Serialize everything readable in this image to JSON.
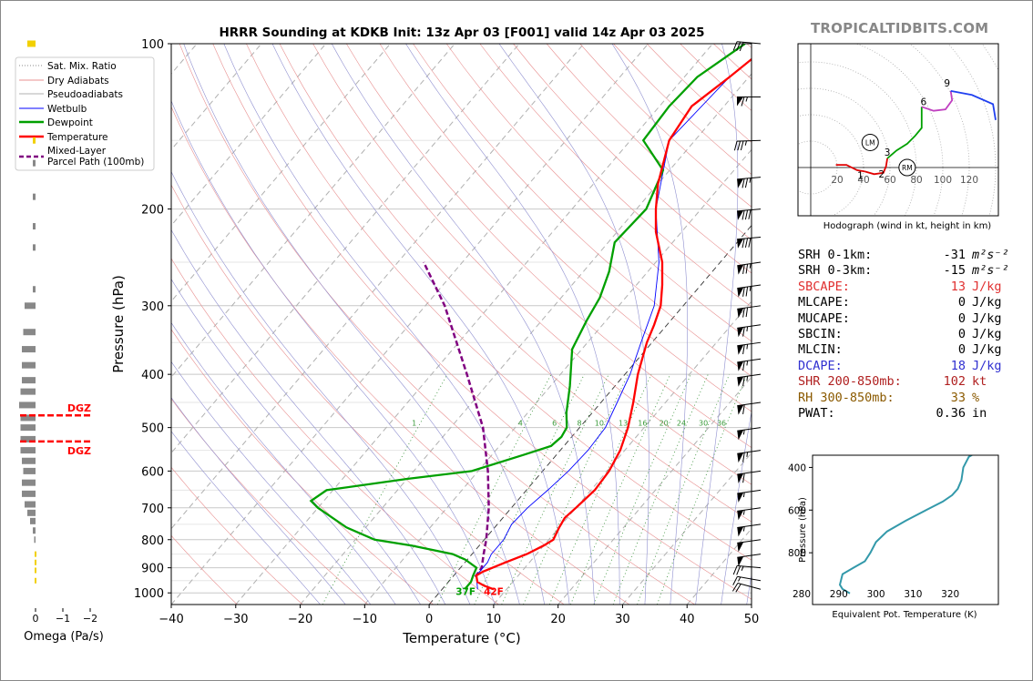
{
  "title": "HRRR Sounding at KDKB Init: 13z Apr 03 [F001] valid 14z Apr 03 2025",
  "brand": "TROPICALTIDBITS.COM",
  "chart_data": [
    {
      "type": "line",
      "subtype": "skew-T log-P sounding",
      "xlabel": "Temperature (°C)",
      "ylabel": "Pressure (hPa)",
      "xlim": [
        -40,
        50
      ],
      "ylim": [
        1050,
        100
      ],
      "yscale": "log",
      "x_ticks": [
        -40,
        -30,
        -20,
        -10,
        0,
        10,
        20,
        30,
        40,
        50
      ],
      "y_ticks": [
        100,
        200,
        300,
        400,
        500,
        600,
        700,
        800,
        900,
        1000
      ],
      "legend": [
        "Sat. Mix. Ratio",
        "Dry Adiabats",
        "Pseudoadiabats",
        "Wetbulb",
        "Dewpoint",
        "Temperature",
        "Mixed-Layer Parcel Path (100mb)"
      ],
      "legend_position": "top-left",
      "mixing_ratio_labels": [
        "1",
        "4",
        "6",
        "8",
        "10",
        "13",
        "16",
        "20",
        "24",
        "30",
        "36"
      ],
      "surface_labels": {
        "dewpoint": "37F",
        "temperature": "42F"
      },
      "colors": {
        "temperature": "#ff0000",
        "dewpoint": "#00a000",
        "wetbulb": "#0000ff",
        "parcel": "#800080",
        "dry": "#e89090",
        "moist": "#9090d0",
        "mixratio": "#2e8b2e"
      },
      "series": [
        {
          "name": "Temperature",
          "points": [
            [
              985,
              8
            ],
            [
              970,
              6
            ],
            [
              955,
              4.5
            ],
            [
              930,
              3.5
            ],
            [
              915,
              4
            ],
            [
              880,
              6.3
            ],
            [
              850,
              8.5
            ],
            [
              820,
              10
            ],
            [
              800,
              10.7
            ],
            [
              760,
              10
            ],
            [
              730,
              9.6
            ],
            [
              700,
              10
            ],
            [
              650,
              10.6
            ],
            [
              600,
              10.3
            ],
            [
              550,
              9.3
            ],
            [
              500,
              7.5
            ],
            [
              450,
              5
            ],
            [
              400,
              2
            ],
            [
              350,
              -0.8
            ],
            [
              325,
              -2
            ],
            [
              300,
              -3.5
            ],
            [
              275,
              -6
            ],
            [
              250,
              -9
            ],
            [
              220,
              -14
            ],
            [
              200,
              -17
            ],
            [
              180,
              -20
            ],
            [
              150,
              -24
            ],
            [
              130,
              -25
            ],
            [
              115,
              -23
            ],
            [
              100,
              -21
            ]
          ]
        },
        {
          "name": "Dewpoint",
          "points": [
            [
              985,
              3.5
            ],
            [
              955,
              3.5
            ],
            [
              930,
              3
            ],
            [
              900,
              2.5
            ],
            [
              870,
              -0.3
            ],
            [
              850,
              -3
            ],
            [
              820,
              -10.5
            ],
            [
              800,
              -17
            ],
            [
              760,
              -23
            ],
            [
              700,
              -30
            ],
            [
              680,
              -32
            ],
            [
              650,
              -31
            ],
            [
              620,
              -20
            ],
            [
              600,
              -11
            ],
            [
              560,
              -5
            ],
            [
              540,
              -2
            ],
            [
              520,
              -1.6
            ],
            [
              500,
              -2
            ],
            [
              470,
              -4
            ],
            [
              420,
              -7
            ],
            [
              360,
              -11.5
            ],
            [
              320,
              -13
            ],
            [
              290,
              -14
            ],
            [
              260,
              -16
            ],
            [
              230,
              -19
            ],
            [
              200,
              -18.5
            ],
            [
              170,
              -21
            ],
            [
              150,
              -28
            ],
            [
              130,
              -28.5
            ],
            [
              115,
              -28
            ],
            [
              100,
              -25
            ]
          ]
        },
        {
          "name": "Wetbulb",
          "points": [
            [
              985,
              5.5
            ],
            [
              930,
              3.5
            ],
            [
              880,
              3.5
            ],
            [
              850,
              3
            ],
            [
              800,
              3
            ],
            [
              750,
              2.2
            ],
            [
              700,
              2.5
            ],
            [
              650,
              3.3
            ],
            [
              600,
              4
            ],
            [
              550,
              4.3
            ],
            [
              500,
              4
            ],
            [
              450,
              2.5
            ],
            [
              400,
              0.8
            ],
            [
              350,
              -1.7
            ],
            [
              300,
              -4.5
            ],
            [
              250,
              -9.5
            ],
            [
              200,
              -17
            ],
            [
              150,
              -24
            ],
            [
              115,
              -23
            ],
            [
              100,
              -21
            ]
          ]
        },
        {
          "name": "Mixed-Layer Parcel Path (100mb)",
          "points": [
            [
              935,
              3.5
            ],
            [
              900,
              3.3
            ],
            [
              850,
              1.8
            ],
            [
              800,
              0.3
            ],
            [
              700,
              -3.5
            ],
            [
              600,
              -8.5
            ],
            [
              500,
              -15
            ],
            [
              400,
              -24.5
            ],
            [
              300,
              -37
            ],
            [
              250,
              -46
            ]
          ]
        }
      ]
    },
    {
      "type": "bar",
      "subtype": "omega profile",
      "xlabel": "Omega (Pa/s)",
      "x_ticks": [
        "0",
        "−1",
        "−2"
      ],
      "dgz_label": "DGZ",
      "dgz_pressure_bounds": [
        475,
        530
      ],
      "values": [
        [
          100,
          -0.3
        ],
        [
          150,
          -0.1
        ],
        [
          165,
          -0.1
        ],
        [
          190,
          -0.1
        ],
        [
          215,
          -0.1
        ],
        [
          235,
          -0.1
        ],
        [
          280,
          -0.1
        ],
        [
          300,
          -0.4
        ],
        [
          335,
          -0.45
        ],
        [
          360,
          -0.5
        ],
        [
          385,
          -0.5
        ],
        [
          410,
          -0.5
        ],
        [
          430,
          -0.55
        ],
        [
          455,
          -0.6
        ],
        [
          480,
          -0.55
        ],
        [
          500,
          -0.55
        ],
        [
          525,
          -0.55
        ],
        [
          550,
          -0.55
        ],
        [
          575,
          -0.5
        ],
        [
          600,
          -0.45
        ],
        [
          630,
          -0.5
        ],
        [
          660,
          -0.5
        ],
        [
          690,
          -0.4
        ],
        [
          715,
          -0.3
        ],
        [
          740,
          -0.2
        ],
        [
          770,
          -0.1
        ],
        [
          800,
          -0.05
        ],
        [
          850,
          0.05
        ],
        [
          880,
          0.05
        ],
        [
          910,
          0.05
        ],
        [
          950,
          0.05
        ]
      ]
    },
    {
      "type": "line",
      "subtype": "hodograph",
      "xlabel": "Hodograph (wind in kt, height in km)",
      "ring_labels": [
        "20",
        "40",
        "60",
        "80",
        "100",
        "120"
      ],
      "height_labels": [
        "1",
        "2",
        "3",
        "6",
        "9"
      ],
      "storm_motion_labels": [
        "LM",
        "RM"
      ],
      "segments": [
        {
          "range": "0-1 km",
          "color": "#e00000",
          "points": [
            [
              19,
              2
            ],
            [
              27,
              2
            ],
            [
              35,
              -2
            ],
            [
              41,
              -3
            ]
          ]
        },
        {
          "range": "1-3 km",
          "color": "#e00000",
          "points": [
            [
              41,
              -3
            ],
            [
              48,
              -5
            ],
            [
              55,
              -4
            ],
            [
              57,
              1
            ],
            [
              58,
              7
            ]
          ]
        },
        {
          "range": "3-6 km",
          "color": "#00a000",
          "points": [
            [
              58,
              7
            ],
            [
              65,
              13
            ],
            [
              73,
              18
            ],
            [
              79,
              24
            ],
            [
              84,
              30
            ],
            [
              84,
              46
            ]
          ]
        },
        {
          "range": "6-9 km",
          "color": "#c040c0",
          "points": [
            [
              84,
              46
            ],
            [
              93,
              43
            ],
            [
              102,
              44
            ],
            [
              107,
              51
            ],
            [
              106,
              58
            ]
          ]
        },
        {
          "range": "9-12 km",
          "color": "#2040f0",
          "points": [
            [
              106,
              58
            ],
            [
              122,
              55
            ],
            [
              138,
              48
            ],
            [
              140,
              36
            ]
          ]
        }
      ],
      "storm_motion": {
        "LM": [
          45,
          19
        ],
        "RM": [
          73,
          0
        ]
      }
    },
    {
      "type": "line",
      "subtype": "theta-e profile",
      "xlabel": "Equivalent Pot. Temperature (K)",
      "ylabel": "Pressure (hPa)",
      "xlim": [
        280,
        330
      ],
      "ylim": [
        1000,
        300
      ],
      "x_ticks": [
        "280",
        "290",
        "300",
        "310",
        "320"
      ],
      "y_ticks": [
        "400",
        "600",
        "800"
      ],
      "points": [
        [
          990,
          293
        ],
        [
          970,
          291
        ],
        [
          950,
          290.3
        ],
        [
          900,
          291
        ],
        [
          870,
          294
        ],
        [
          840,
          297
        ],
        [
          800,
          298.5
        ],
        [
          750,
          300
        ],
        [
          700,
          303
        ],
        [
          650,
          308
        ],
        [
          600,
          313.5
        ],
        [
          560,
          318
        ],
        [
          530,
          320.5
        ],
        [
          500,
          322
        ],
        [
          460,
          323
        ],
        [
          400,
          323.5
        ],
        [
          350,
          325
        ],
        [
          320,
          328
        ]
      ]
    }
  ],
  "wind_barbs": [
    {
      "p": 100,
      "dir": 275,
      "kt": 30
    },
    {
      "p": 125,
      "dir": 270,
      "kt": 65
    },
    {
      "p": 150,
      "dir": 268,
      "kt": 35
    },
    {
      "p": 175,
      "dir": 265,
      "kt": 75
    },
    {
      "p": 200,
      "dir": 265,
      "kt": 80
    },
    {
      "p": 225,
      "dir": 265,
      "kt": 80
    },
    {
      "p": 250,
      "dir": 262,
      "kt": 75
    },
    {
      "p": 275,
      "dir": 262,
      "kt": 75
    },
    {
      "p": 300,
      "dir": 262,
      "kt": 70
    },
    {
      "p": 325,
      "dir": 262,
      "kt": 65
    },
    {
      "p": 350,
      "dir": 262,
      "kt": 65
    },
    {
      "p": 375,
      "dir": 262,
      "kt": 65
    },
    {
      "p": 400,
      "dir": 262,
      "kt": 65
    },
    {
      "p": 450,
      "dir": 262,
      "kt": 60
    },
    {
      "p": 500,
      "dir": 262,
      "kt": 55
    },
    {
      "p": 550,
      "dir": 262,
      "kt": 65
    },
    {
      "p": 600,
      "dir": 262,
      "kt": 60
    },
    {
      "p": 650,
      "dir": 262,
      "kt": 55
    },
    {
      "p": 700,
      "dir": 262,
      "kt": 55
    },
    {
      "p": 750,
      "dir": 262,
      "kt": 55
    },
    {
      "p": 800,
      "dir": 262,
      "kt": 50
    },
    {
      "p": 850,
      "dir": 262,
      "kt": 50
    },
    {
      "p": 900,
      "dir": 275,
      "kt": 25
    },
    {
      "p": 950,
      "dir": 280,
      "kt": 15
    },
    {
      "p": 985,
      "dir": 285,
      "kt": 20
    }
  ],
  "indices": [
    {
      "label": "SRH 0-1km:",
      "value": "-31",
      "unit": "m²s⁻²",
      "color": "#000000"
    },
    {
      "label": "SRH 0-3km:",
      "value": "-15",
      "unit": "m²s⁻²",
      "color": "#000000"
    },
    {
      "label": "SBCAPE:",
      "value": "13",
      "unit": "J/kg",
      "color": "#e03030"
    },
    {
      "label": "MLCAPE:",
      "value": "0",
      "unit": "J/kg",
      "color": "#000000"
    },
    {
      "label": "MUCAPE:",
      "value": "0",
      "unit": "J/kg",
      "color": "#000000"
    },
    {
      "label": "SBCIN:",
      "value": "0",
      "unit": "J/kg",
      "color": "#000000"
    },
    {
      "label": "MLCIN:",
      "value": "0",
      "unit": "J/kg",
      "color": "#000000"
    },
    {
      "label": "DCAPE:",
      "value": "18",
      "unit": "J/kg",
      "color": "#3030d0"
    },
    {
      "label": "SHR 200-850mb:",
      "value": "102",
      "unit": "kt",
      "color": "#b02020"
    },
    {
      "label": "RH 300-850mb:",
      "value": "33",
      "unit": "%",
      "color": "#8b5a00"
    },
    {
      "label": "PWAT:",
      "value": "0.36",
      "unit": "in",
      "color": "#000000"
    }
  ]
}
